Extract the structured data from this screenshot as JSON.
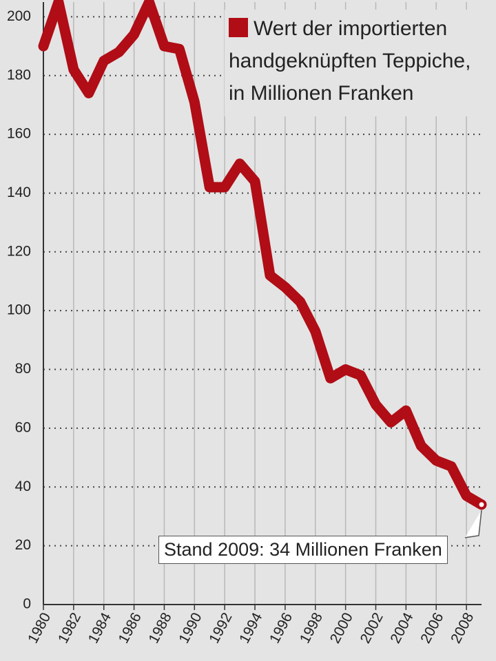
{
  "chart_data": {
    "type": "line",
    "x": [
      1980,
      1981,
      1982,
      1983,
      1984,
      1985,
      1986,
      1987,
      1988,
      1989,
      1990,
      1991,
      1992,
      1993,
      1994,
      1995,
      1996,
      1997,
      1998,
      1999,
      2000,
      2001,
      2002,
      2003,
      2004,
      2005,
      2006,
      2007,
      2008,
      2009
    ],
    "series": [
      {
        "name": "Wert der importierten handgeknüpften Teppiche, in Millionen Franken",
        "color": "#b00d16",
        "values": [
          190,
          205,
          182,
          174,
          185,
          188,
          194,
          205,
          190,
          189,
          171,
          142,
          142,
          150,
          144,
          112,
          108,
          103,
          93,
          77,
          80,
          78,
          68,
          62,
          66,
          54,
          49,
          47,
          37,
          34
        ]
      }
    ],
    "annotation": "Stand 2009: 34 Millionen Franken",
    "xlim": [
      1980,
      2009
    ],
    "xticks": [
      1980,
      1982,
      1984,
      1986,
      1988,
      1990,
      1992,
      1994,
      1996,
      1998,
      2000,
      2002,
      2004,
      2006,
      2008
    ],
    "ylim": [
      0,
      205
    ],
    "yticks": [
      0,
      20,
      40,
      60,
      80,
      100,
      120,
      140,
      160,
      180,
      200
    ],
    "grid": true
  }
}
